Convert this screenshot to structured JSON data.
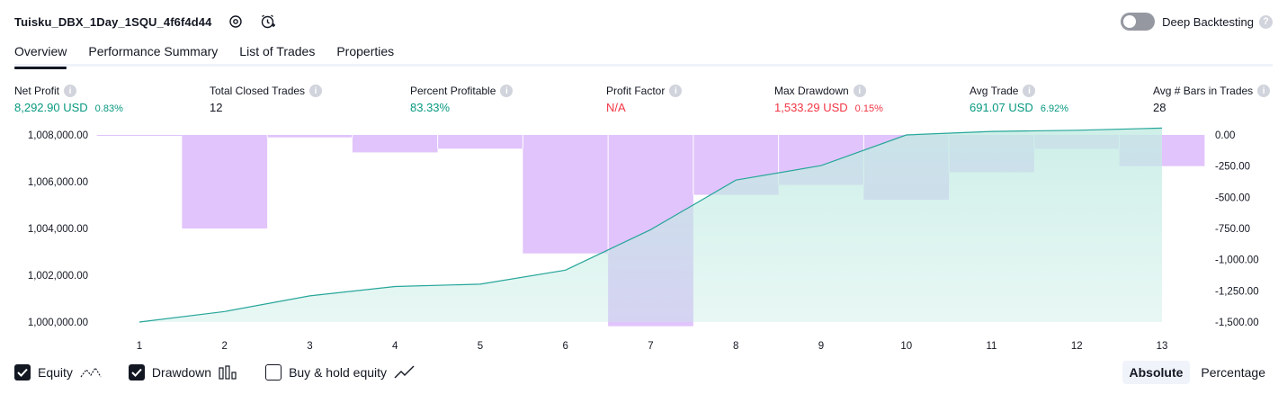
{
  "header": {
    "title": "Tuisku_DBX_1Day_1SQU_4f6f4d44",
    "deep_backtesting_label": "Deep Backtesting"
  },
  "tabs": [
    {
      "label": "Overview"
    },
    {
      "label": "Performance Summary"
    },
    {
      "label": "List of Trades"
    },
    {
      "label": "Properties"
    }
  ],
  "stats": [
    {
      "label": "Net Profit",
      "value": "8,292.90 USD",
      "sub": "0.83%",
      "color": "#089981"
    },
    {
      "label": "Total Closed Trades",
      "value": "12",
      "sub": "",
      "color": "#131722"
    },
    {
      "label": "Percent Profitable",
      "value": "83.33%",
      "sub": "",
      "color": "#089981"
    },
    {
      "label": "Profit Factor",
      "value": "N/A",
      "sub": "",
      "color": "#f23645"
    },
    {
      "label": "Max Drawdown",
      "value": "1,533.29 USD",
      "sub": "0.15%",
      "color": "#f23645"
    },
    {
      "label": "Avg Trade",
      "value": "691.07 USD",
      "sub": "6.92%",
      "color": "#089981"
    },
    {
      "label": "Avg # Bars in Trades",
      "value": "28",
      "sub": "",
      "color": "#131722"
    }
  ],
  "chart_data": {
    "type": "area",
    "x": [
      1,
      2,
      3,
      4,
      5,
      6,
      7,
      8,
      9,
      10,
      11,
      12,
      13
    ],
    "series": [
      {
        "name": "Equity",
        "axis": "left",
        "values": [
          1000000,
          1000450,
          1001120,
          1001520,
          1001620,
          1002220,
          1003950,
          1006070,
          1006690,
          1008000,
          1008150,
          1008200,
          1008293
        ]
      },
      {
        "name": "Drawdown",
        "axis": "right",
        "values": [
          0,
          -750,
          -20,
          -140,
          -110,
          -950,
          -1533.29,
          -480,
          -400,
          -520,
          -300,
          -110,
          -250
        ]
      }
    ],
    "left_ylim": [
      1000000,
      1008000
    ],
    "left_ticks": [
      "1,000,000.00",
      "1,002,000.00",
      "1,004,000.00",
      "1,006,000.00",
      "1,008,000.00"
    ],
    "right_ylim": [
      -1500,
      0
    ],
    "right_ticks": [
      "0.00",
      "-250.00",
      "-500.00",
      "-750.00",
      "-1,000.00",
      "-1,250.00",
      "-1,500.00"
    ],
    "colors": {
      "equity_line": "#26a69a",
      "equity_fill": "#c3ebe3",
      "drawdown_fill": "#e1c4fb"
    }
  },
  "legend": {
    "equity_label": "Equity",
    "drawdown_label": "Drawdown",
    "buyhold_label": "Buy & hold equity",
    "equity_checked": true,
    "drawdown_checked": true,
    "buyhold_checked": false
  },
  "mode": {
    "absolute_label": "Absolute",
    "percentage_label": "Percentage"
  }
}
